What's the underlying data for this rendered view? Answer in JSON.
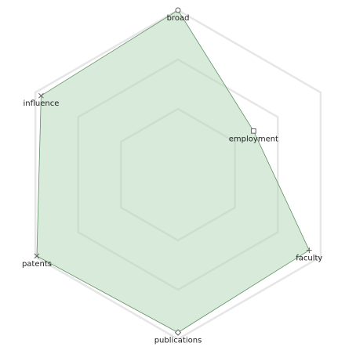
{
  "chart_data": {
    "type": "radar",
    "axes": [
      "broad",
      "employment",
      "faculty",
      "publications",
      "patents",
      "influence"
    ],
    "series": [
      {
        "values": [
          1.0,
          0.53,
          0.92,
          0.96,
          0.99,
          0.96
        ],
        "color": "#b2d8b7",
        "markers": [
          "circle",
          "square",
          "plus",
          "diamond",
          "x",
          "x"
        ]
      }
    ],
    "range": [
      0,
      1
    ],
    "grid_levels": [
      0.4,
      0.7,
      1.0
    ],
    "grid": true,
    "legend": "none"
  }
}
